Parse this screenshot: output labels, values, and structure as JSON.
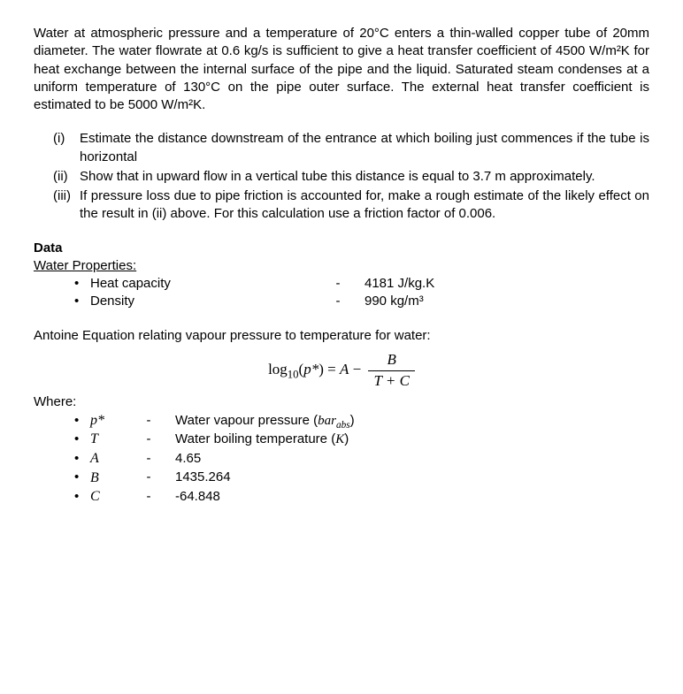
{
  "intro": "Water at atmospheric pressure and a temperature of 20°C enters a thin-walled copper tube of 20mm diameter. The water flowrate at 0.6 kg/s is sufficient to give a heat transfer coefficient of 4500 W/m²K for heat exchange between the internal surface of the pipe and the liquid. Saturated steam condenses at a uniform temperature of 130°C on the pipe outer surface. The external heat transfer coefficient is estimated to be 5000 W/m²K.",
  "questions": [
    {
      "num": "(i)",
      "text": "Estimate the distance downstream of the entrance at which boiling just commences if the tube is horizontal"
    },
    {
      "num": "(ii)",
      "text": "Show that in upward flow in a vertical tube this distance is equal to 3.7 m approximately."
    },
    {
      "num": "(iii)",
      "text": "If pressure loss due to pipe friction is accounted for, make a rough estimate of the likely effect on the result in (ii) above. For this calculation use a friction factor of 0.006."
    }
  ],
  "data_label": "Data",
  "water_props_label": "Water Properties:",
  "props": [
    {
      "name": "Heat capacity",
      "value": "4181 J/kg.K"
    },
    {
      "name": "Density",
      "value": "990 kg/m³"
    }
  ],
  "antoine_intro": "Antoine Equation relating vapour pressure to temperature for water:",
  "equation": {
    "lhs": "log₁₀(p*)",
    "A": "A",
    "B": "B",
    "den": "T + C"
  },
  "where_label": "Where:",
  "symbols": [
    {
      "sym": "p*",
      "def_prefix": "Water vapour pressure (",
      "def_mid": "bar",
      "def_sub": "abs",
      "def_suffix": ")"
    },
    {
      "sym": "T",
      "def_prefix": "Water boiling temperature (",
      "def_mid": "K",
      "def_sub": "",
      "def_suffix": ")"
    },
    {
      "sym": "A",
      "def_prefix": "4.65",
      "def_mid": "",
      "def_sub": "",
      "def_suffix": ""
    },
    {
      "sym": "B",
      "def_prefix": "1435.264",
      "def_mid": "",
      "def_sub": "",
      "def_suffix": ""
    },
    {
      "sym": "C",
      "def_prefix": "-64.848",
      "def_mid": "",
      "def_sub": "",
      "def_suffix": ""
    }
  ]
}
